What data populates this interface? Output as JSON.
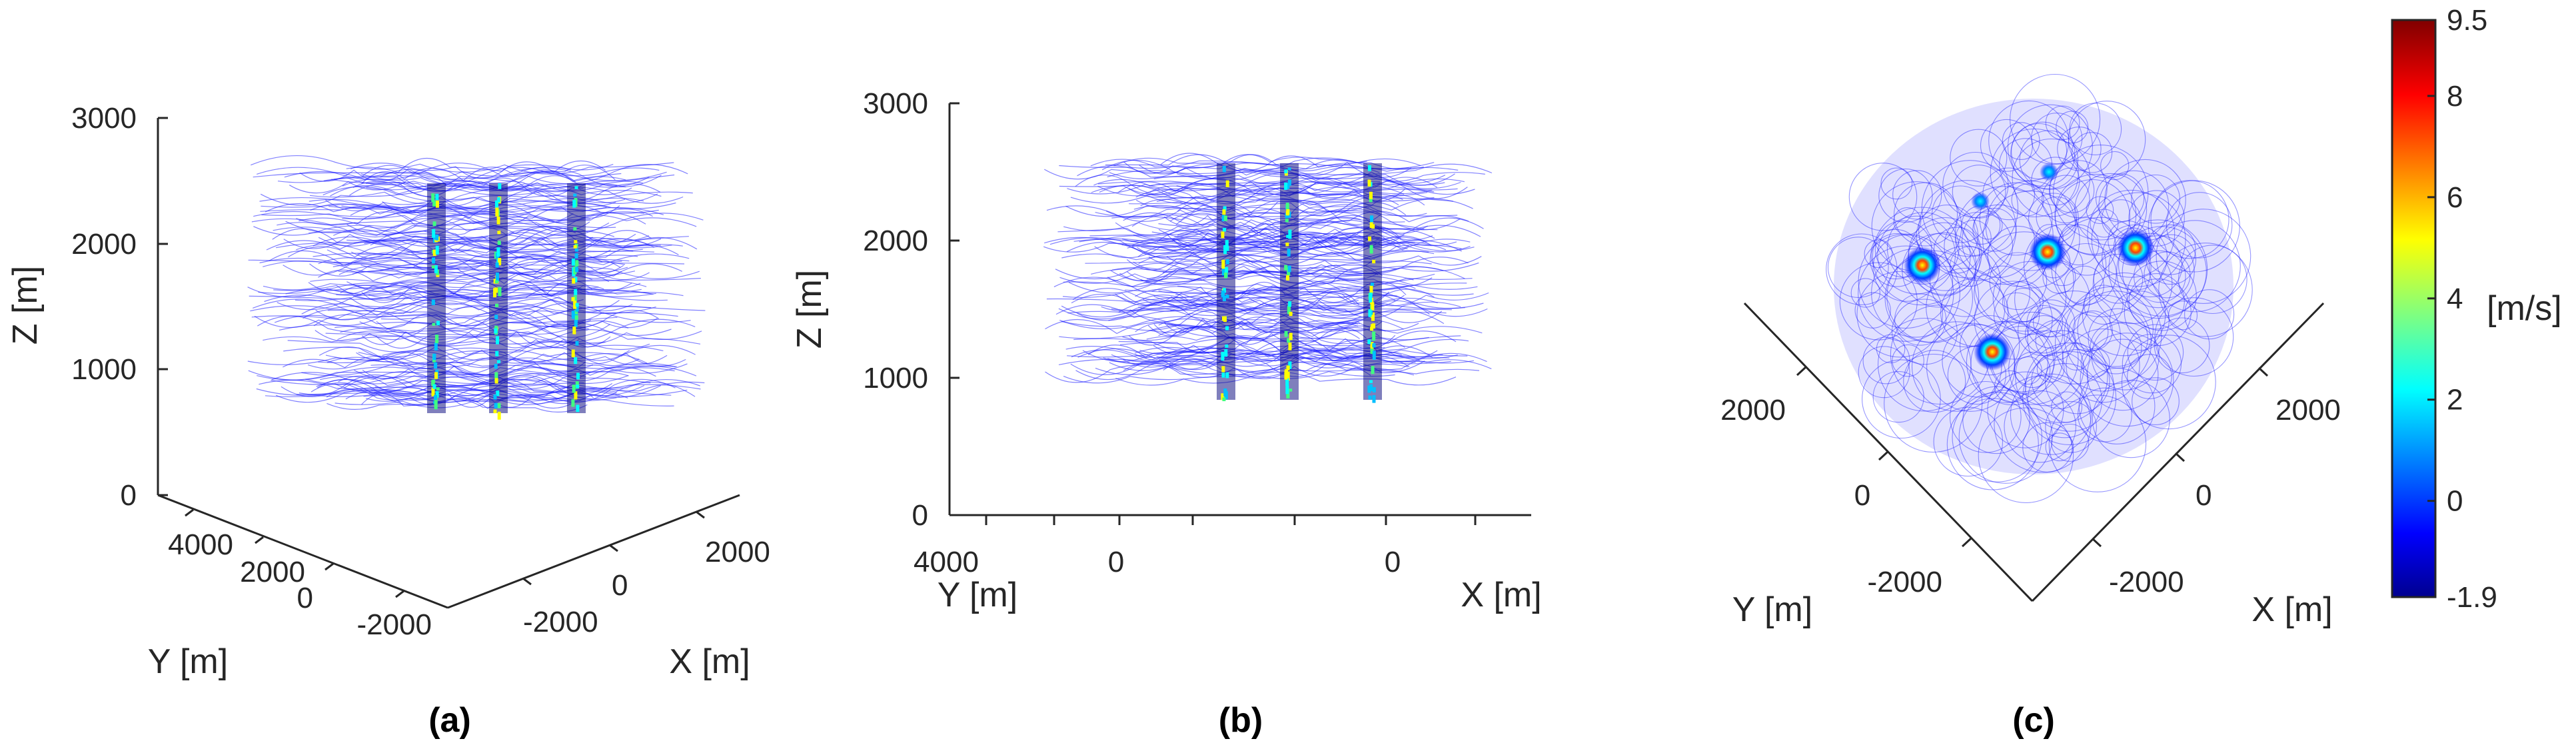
{
  "chart_data": [
    {
      "type": "line",
      "panel_label": "(a)",
      "view": "3D perspective",
      "xlabel": "X [m]",
      "ylabel": "Y [m]",
      "zlabel": "Z [m]",
      "x_ticks": [
        "-2000",
        "0",
        "2000"
      ],
      "y_ticks": [
        "-2000",
        "0",
        "2000",
        "4000"
      ],
      "z_ticks": [
        "0",
        "1000",
        "2000",
        "3000"
      ],
      "zlim": [
        0,
        3000
      ],
      "thermal_columns": 3,
      "trajectory_altitude_range": [
        700,
        2600
      ]
    },
    {
      "type": "line",
      "panel_label": "(b)",
      "view": "side (elevation 0)",
      "xlabel": "X [m]",
      "ylabel": "Y [m]",
      "zlabel": "Z [m]",
      "x_ticks": [
        "0"
      ],
      "y_ticks": [
        "4000",
        "0"
      ],
      "z_ticks": [
        "0",
        "1000",
        "2000",
        "3000"
      ],
      "zlim": [
        0,
        3000
      ],
      "thermal_columns": 3
    },
    {
      "type": "line",
      "panel_label": "(c)",
      "view": "top-down",
      "xlabel": "X [m]",
      "ylabel": "Y [m]",
      "x_ticks": [
        "-2000",
        "0",
        "2000"
      ],
      "y_ticks": [
        "-2000",
        "0",
        "2000"
      ],
      "thermal_centers": 4
    }
  ],
  "colorbar": {
    "label": "[m/s]",
    "min": -1.9,
    "max": 9.5,
    "ticks": [
      "9.5",
      "8",
      "6",
      "4",
      "2",
      "0",
      "-1.9"
    ],
    "tick_values": [
      9.5,
      8,
      6,
      4,
      2,
      0,
      -1.9
    ],
    "colormap": "jet",
    "colors": [
      "#00008f",
      "#0000ff",
      "#00ffff",
      "#ffff00",
      "#ff0000",
      "#800000"
    ]
  }
}
